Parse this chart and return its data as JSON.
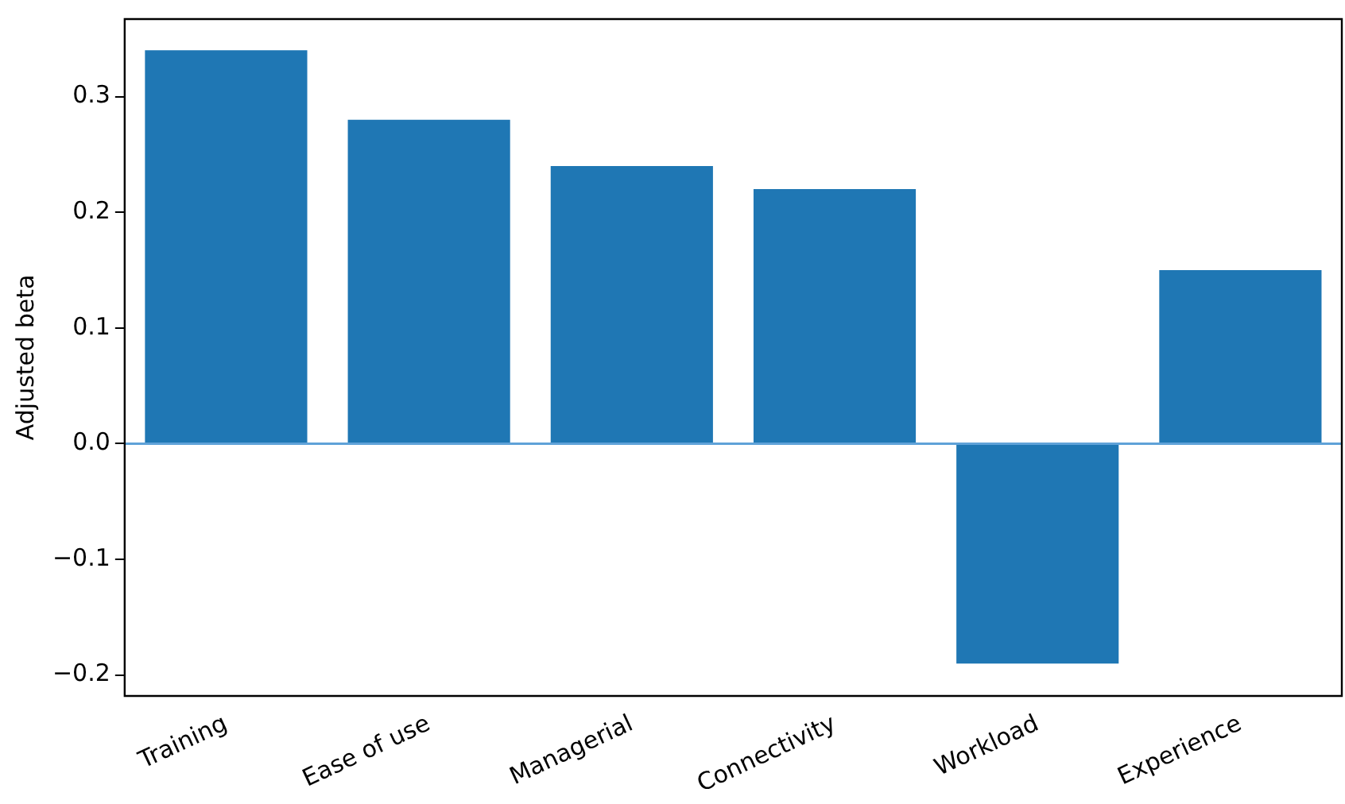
{
  "chart_data": {
    "type": "bar",
    "ylabel": "Adjusted beta",
    "categories": [
      "Training",
      "Ease of use",
      "Managerial",
      "Connectivity",
      "Workload",
      "Experience"
    ],
    "values": [
      0.34,
      0.28,
      0.24,
      0.22,
      -0.19,
      0.15
    ],
    "color": "#1f77b4",
    "ylim": [
      -0.218,
      0.367
    ],
    "yticks": [
      {
        "value": -0.2,
        "label": "−0.2"
      },
      {
        "value": -0.1,
        "label": "−0.1"
      },
      {
        "value": 0,
        "label": "0.0"
      },
      0.1,
      0.2,
      0.3
    ],
    "ref_lines": [
      {
        "axis": "y",
        "value": 0,
        "color": "#5fa2d8"
      }
    ],
    "grid": false,
    "legend": false
  }
}
